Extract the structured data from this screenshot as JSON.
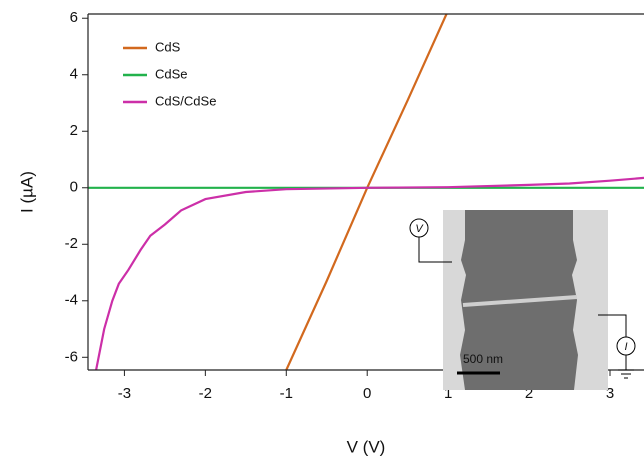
{
  "chart_data": {
    "type": "line",
    "xlabel": "V (V)",
    "ylabel": "I (µA)",
    "xlim": [
      -3.45,
      3.42
    ],
    "ylim": [
      -6.45,
      6.15
    ],
    "xticks": [
      -3,
      -2,
      -1,
      0,
      1,
      2,
      3
    ],
    "yticks": [
      -6,
      -4,
      -2,
      0,
      2,
      4,
      6
    ],
    "legend": "upper left",
    "series": [
      {
        "name": "CdS",
        "color": "#d2691e",
        "x": [
          -1.0,
          -0.5,
          0,
          0.5,
          0.98
        ],
        "values": [
          -6.45,
          -3.3,
          0,
          3.1,
          6.15
        ]
      },
      {
        "name": "CdSe",
        "color": "#22b24c",
        "x": [
          -3.45,
          3.42
        ],
        "values": [
          0,
          0
        ]
      },
      {
        "name": "CdS/CdSe",
        "color": "#cc2fa8",
        "x": [
          -3.35,
          -3.25,
          -3.15,
          -3.07,
          -2.95,
          -2.8,
          -2.68,
          -2.5,
          -2.3,
          -2.0,
          -1.5,
          -1.0,
          0,
          1.0,
          2.0,
          2.5,
          3.0,
          3.42
        ],
        "values": [
          -6.45,
          -5.0,
          -4.0,
          -3.4,
          -2.9,
          -2.2,
          -1.7,
          -1.3,
          -0.8,
          -0.4,
          -0.15,
          -0.05,
          0,
          0.02,
          0.1,
          0.15,
          0.25,
          0.35
        ]
      }
    ],
    "inset": {
      "voltmeter": "V",
      "ammeter": "I",
      "scale_bar": "500 nm"
    }
  }
}
